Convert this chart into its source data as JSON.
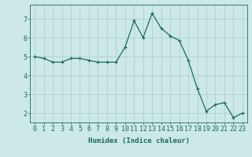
{
  "x": [
    0,
    1,
    2,
    3,
    4,
    5,
    6,
    7,
    8,
    9,
    10,
    11,
    12,
    13,
    14,
    15,
    16,
    17,
    18,
    19,
    20,
    21,
    22,
    23
  ],
  "y": [
    5.0,
    4.9,
    4.7,
    4.7,
    4.9,
    4.9,
    4.8,
    4.7,
    4.7,
    4.7,
    5.5,
    6.9,
    6.0,
    7.3,
    6.5,
    6.1,
    5.85,
    4.8,
    3.3,
    2.1,
    2.45,
    2.55,
    1.75,
    2.0
  ],
  "line_color": "#1a6b5e",
  "marker": "+",
  "bg_color": "#cce8e8",
  "grid_color": "#b0cfcf",
  "xlabel": "Humidex (Indice chaleur)",
  "xlim": [
    -0.5,
    23.5
  ],
  "ylim": [
    1.5,
    7.75
  ],
  "yticks": [
    2,
    3,
    4,
    5,
    6,
    7
  ],
  "xticks": [
    0,
    1,
    2,
    3,
    4,
    5,
    6,
    7,
    8,
    9,
    10,
    11,
    12,
    13,
    14,
    15,
    16,
    17,
    18,
    19,
    20,
    21,
    22,
    23
  ],
  "xlabel_fontsize": 6.5,
  "tick_fontsize": 6,
  "linewidth": 0.9,
  "markersize": 3.5,
  "markeredgewidth": 0.9
}
